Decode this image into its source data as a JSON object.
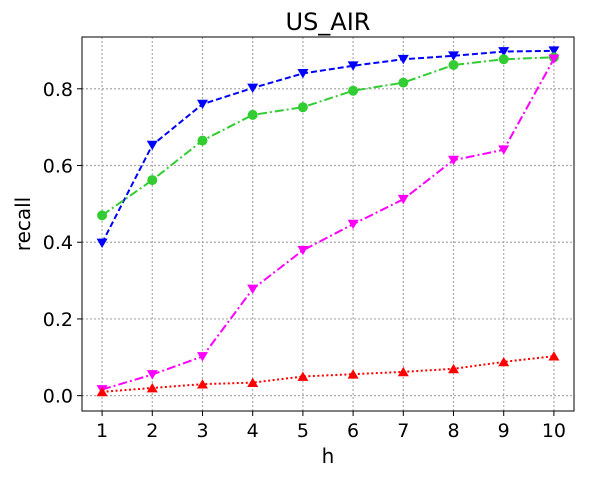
{
  "chart_data": {
    "type": "line",
    "title": "US_AIR",
    "xlabel": "h",
    "ylabel": "recall",
    "x": [
      1,
      2,
      3,
      4,
      5,
      6,
      7,
      8,
      9,
      10
    ],
    "xticks": [
      "1",
      "2",
      "3",
      "4",
      "5",
      "6",
      "7",
      "8",
      "9",
      "10"
    ],
    "yticks": [
      "0.0",
      "0.2",
      "0.4",
      "0.6",
      "0.8"
    ],
    "ylim": [
      -0.04,
      0.935
    ],
    "xlim": [
      0.6,
      10.4
    ],
    "grid": true,
    "series": [
      {
        "color": "#0000ff",
        "linestyle": "dashed",
        "marker": "triangle-down",
        "values": [
          0.398,
          0.653,
          0.76,
          0.802,
          0.84,
          0.86,
          0.877,
          0.886,
          0.897,
          0.899
        ]
      },
      {
        "color": "#32cd32",
        "linestyle": "dashdot",
        "marker": "circle",
        "values": [
          0.47,
          0.562,
          0.665,
          0.732,
          0.752,
          0.795,
          0.816,
          0.862,
          0.877,
          0.882
        ]
      },
      {
        "color": "#ff00ff",
        "linestyle": "dashdot",
        "marker": "triangle-down",
        "values": [
          0.016,
          0.055,
          0.102,
          0.278,
          0.379,
          0.447,
          0.512,
          0.614,
          0.641,
          0.878
        ]
      },
      {
        "color": "#ff0000",
        "linestyle": "dotted",
        "marker": "triangle-up",
        "values": [
          0.01,
          0.02,
          0.03,
          0.034,
          0.05,
          0.056,
          0.062,
          0.07,
          0.088,
          0.103
        ]
      }
    ]
  }
}
